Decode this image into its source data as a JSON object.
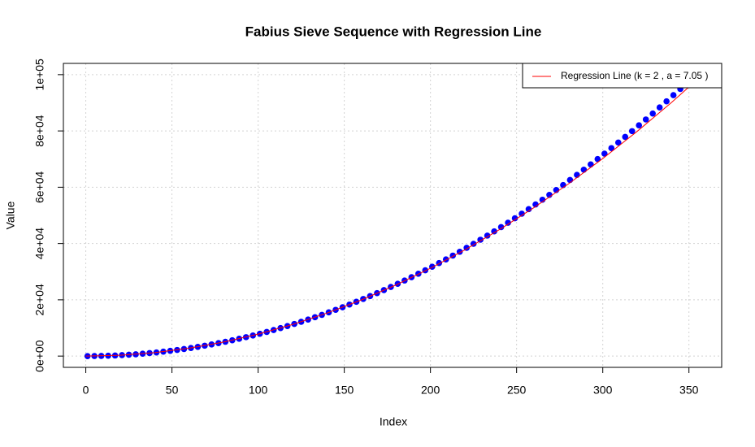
{
  "chart_data": {
    "type": "scatter",
    "title": "Fabius Sieve Sequence with Regression Line",
    "x_label": "Index",
    "y_label": "Value",
    "xlim": [
      -13,
      369
    ],
    "ylim": [
      -4000,
      104000
    ],
    "xticks": [
      0,
      50,
      100,
      150,
      200,
      250,
      300,
      350
    ],
    "yticks": [
      {
        "value": 0,
        "label": "0e+00"
      },
      {
        "value": 20000,
        "label": "2e+04"
      },
      {
        "value": 40000,
        "label": "4e+04"
      },
      {
        "value": 60000,
        "label": "6e+04"
      },
      {
        "value": 80000,
        "label": "8e+04"
      },
      {
        "value": 100000,
        "label": "1e+05"
      }
    ],
    "grid": true,
    "legend": "top-right",
    "series": [
      {
        "type": "scatter",
        "color": "#0000ff",
        "x": [
          1,
          5,
          9,
          13,
          17,
          21,
          25,
          29,
          33,
          37,
          41,
          45,
          49,
          53,
          57,
          61,
          65,
          69,
          73,
          77,
          81,
          85,
          89,
          93,
          97,
          101,
          105,
          109,
          113,
          117,
          121,
          125,
          129,
          133,
          137,
          141,
          145,
          149,
          153,
          157,
          161,
          165,
          169,
          173,
          177,
          181,
          185,
          189,
          193,
          197,
          201,
          205,
          209,
          213,
          217,
          221,
          225,
          229,
          233,
          237,
          241,
          245,
          249,
          253,
          257,
          261,
          265,
          269,
          273,
          277,
          281,
          285,
          289,
          293,
          297,
          301,
          305,
          309,
          313,
          317,
          321,
          325,
          329,
          333,
          337,
          341,
          345,
          349,
          353
        ],
        "values": [
          1,
          19,
          62,
          130,
          223,
          340,
          483,
          650,
          841,
          1058,
          1300,
          1567,
          1858,
          2175,
          2517,
          2883,
          3275,
          3692,
          4134,
          4602,
          5094,
          5612,
          6156,
          6724,
          7318,
          7937,
          8582,
          9252,
          9948,
          10669,
          11415,
          12188,
          12985,
          13809,
          14658,
          15533,
          16433,
          17359,
          18311,
          19289,
          20293,
          21323,
          22378,
          23460,
          24567,
          25700,
          26860,
          28045,
          29257,
          30495,
          31758,
          33048,
          34365,
          35707,
          37076,
          38471,
          39893,
          41340,
          42814,
          44315,
          45842,
          47396,
          48976,
          50582,
          52216,
          53876,
          55562,
          57275,
          59015,
          60782,
          62575,
          64395,
          66242,
          68116,
          70017,
          71944,
          73899,
          75881,
          77889,
          79925,
          81988,
          84078,
          86195,
          88339,
          90510,
          92709,
          94934,
          97188,
          99468
        ]
      },
      {
        "type": "line",
        "name": "Regression Line (k = 2 , a = 7.05 )",
        "color": "#ff0000",
        "x": [
          0,
          20,
          40,
          60,
          80,
          100,
          120,
          140,
          160,
          180,
          200,
          220,
          240,
          260,
          280,
          300,
          320,
          340,
          360
        ],
        "values": [
          0,
          312,
          1248,
          2808,
          4992,
          7800,
          11232,
          15288,
          19968,
          25272,
          31200,
          37752,
          44928,
          52728,
          61152,
          70200,
          79872,
          90168,
          101088
        ]
      }
    ]
  }
}
